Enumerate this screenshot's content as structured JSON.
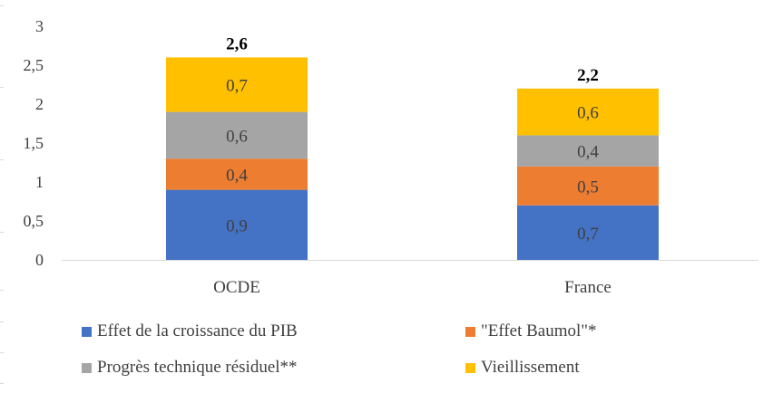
{
  "chart_data": {
    "type": "bar",
    "stacked": true,
    "categories": [
      "OCDE",
      "France"
    ],
    "series": [
      {
        "name": "Effet de la croissance du PIB",
        "color": "#4472C4",
        "values": [
          0.9,
          0.7
        ],
        "labels": [
          "0,9",
          "0,7"
        ]
      },
      {
        "name": "\"Effet Baumol\"*",
        "color": "#ED7D31",
        "values": [
          0.4,
          0.5
        ],
        "labels": [
          "0,4",
          "0,5"
        ]
      },
      {
        "name": "Progrès technique résiduel**",
        "color": "#A5A5A5",
        "values": [
          0.6,
          0.4
        ],
        "labels": [
          "0,6",
          "0,4"
        ]
      },
      {
        "name": "Vieillissement",
        "color": "#FFC000",
        "values": [
          0.7,
          0.6
        ],
        "labels": [
          "0,7",
          "0,6"
        ]
      }
    ],
    "totals": [
      2.6,
      2.2
    ],
    "total_labels": [
      "2,6",
      "2,2"
    ],
    "ylim": [
      0,
      3
    ],
    "yticks": [
      0,
      0.5,
      1,
      1.5,
      2,
      2.5,
      3
    ],
    "ytick_labels": [
      "0",
      "0,5",
      "1",
      "1,5",
      "2",
      "2,5",
      "3"
    ],
    "grid": false,
    "legend_position": "bottom",
    "title": "",
    "xlabel": "",
    "ylabel": ""
  }
}
